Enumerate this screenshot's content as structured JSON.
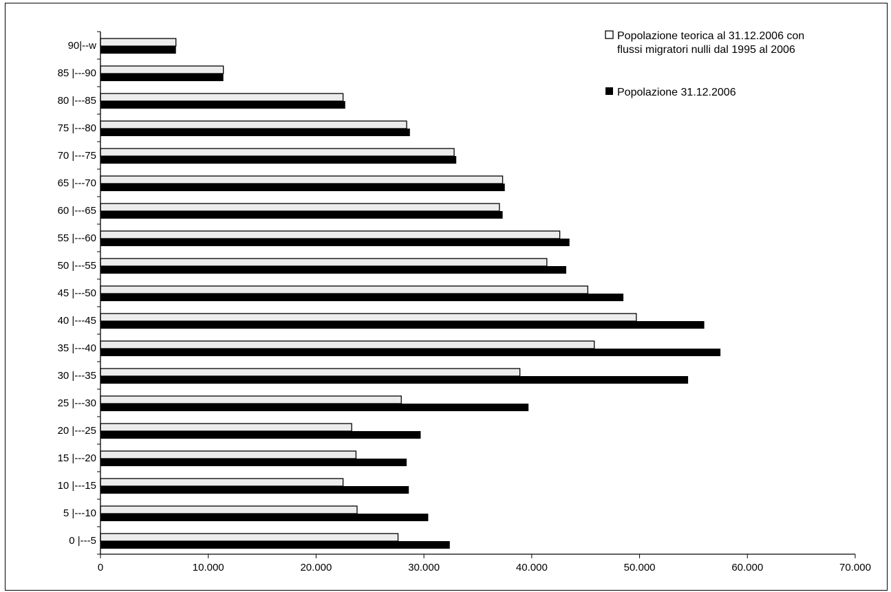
{
  "chart_data": {
    "type": "bar",
    "orientation": "horizontal",
    "categories": [
      "0 |---5",
      "5 |---10",
      "10 |---15",
      "15 |---20",
      "20 |---25",
      "25 |---30",
      "30 |---35",
      "35 |---40",
      "40 |---45",
      "45 |---50",
      "50 |---55",
      "55 |---60",
      "60 |---65",
      "65 |---70",
      "70 |---75",
      "75 |---80",
      "80 |---85",
      "85 |---90",
      "90|--w"
    ],
    "series": [
      {
        "name_lines": [
          "Popolazione teorica al 31.12.2006 con",
          "flussi migratori nulli dal 1995 al 2006"
        ],
        "color": "#ececec",
        "values": [
          27600,
          23800,
          22500,
          23700,
          23300,
          27900,
          38900,
          45800,
          49700,
          45200,
          41400,
          42600,
          37000,
          37300,
          32800,
          28400,
          22500,
          11400,
          7000
        ]
      },
      {
        "name_lines": [
          "Popolazione 31.12.2006"
        ],
        "color": "#000000",
        "values": [
          32400,
          30400,
          28600,
          28400,
          29700,
          39700,
          54500,
          57500,
          56000,
          48500,
          43200,
          43500,
          37300,
          37500,
          33000,
          28700,
          22700,
          11400,
          7000
        ]
      }
    ],
    "xlim": [
      0,
      70000
    ],
    "xticks": [
      0,
      10000,
      20000,
      30000,
      40000,
      50000,
      60000,
      70000
    ],
    "xtick_labels": [
      "0",
      "10.000",
      "20.000",
      "30.000",
      "40.000",
      "50.000",
      "60.000",
      "70.000"
    ],
    "legend_position": "top-right",
    "grid": false
  }
}
